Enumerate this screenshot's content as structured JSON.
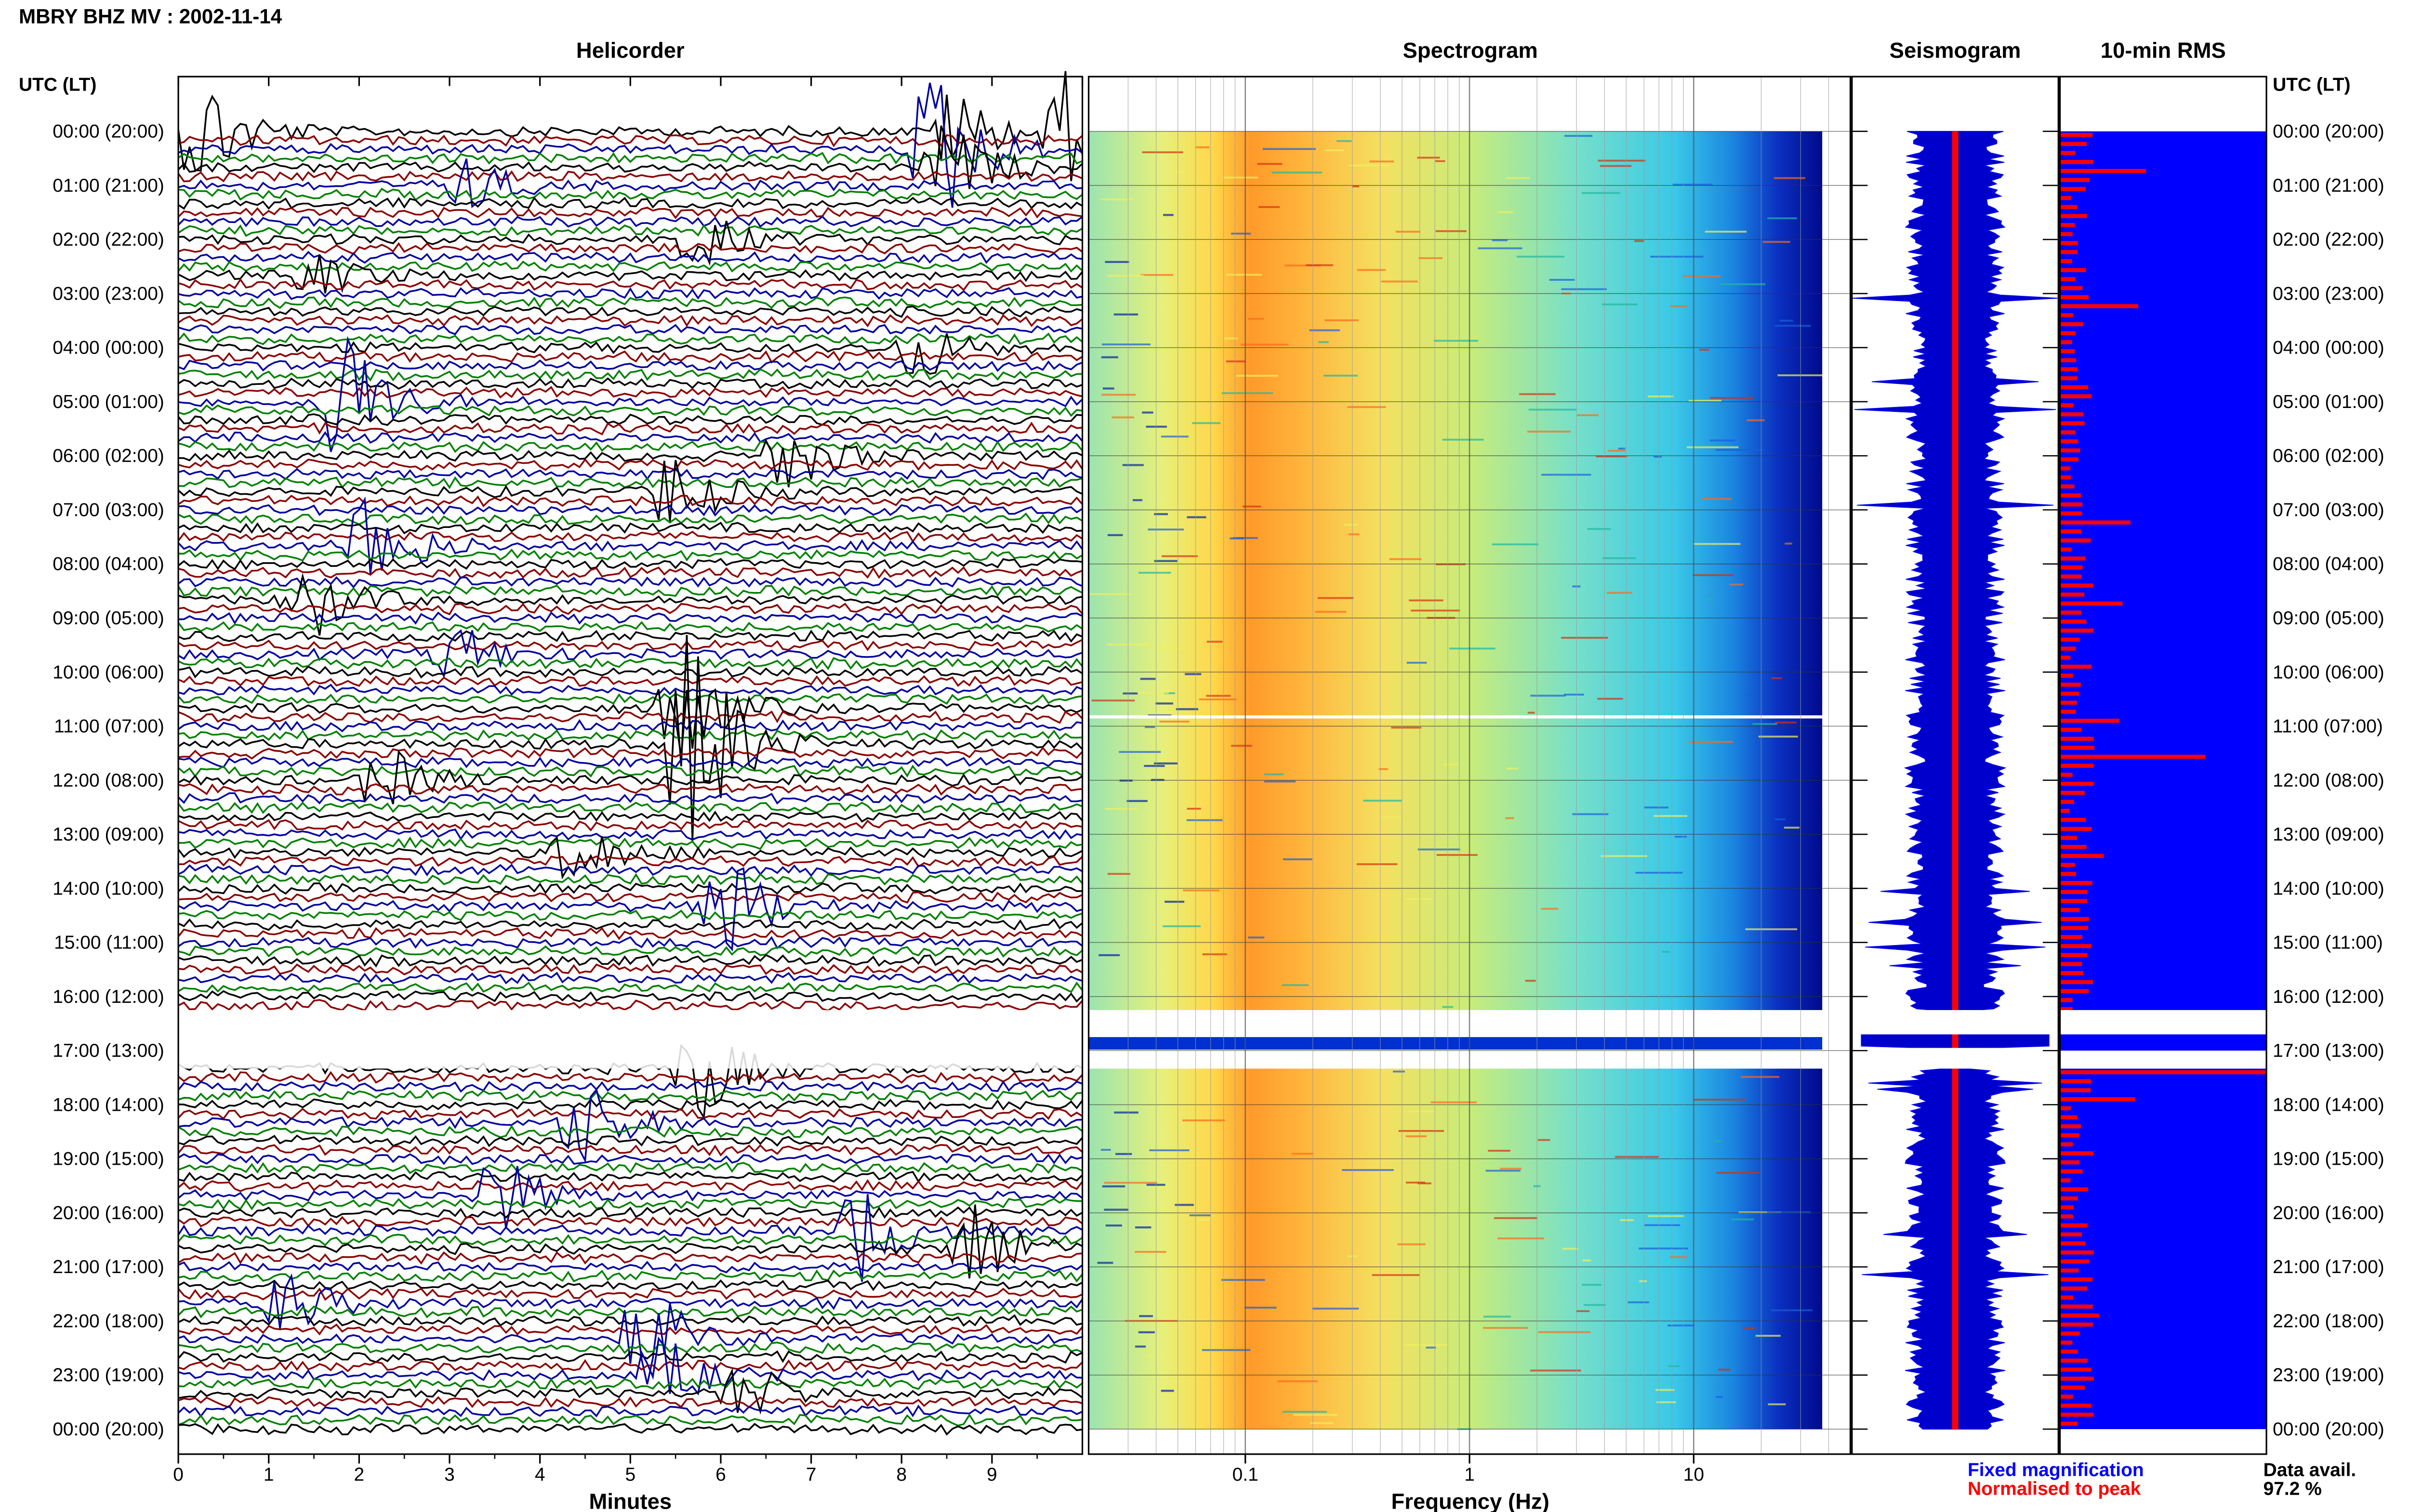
{
  "title": "MBRY BHZ MV : 2002-11-14",
  "panels": {
    "helicorder": "Helicorder",
    "spectrogram": "Spectrogram",
    "seismogram": "Seismogram",
    "rms": "10-min RMS"
  },
  "axis_header_left": "UTC (LT)",
  "axis_header_right": "UTC (LT)",
  "time_labels": [
    "00:00 (20:00)",
    "01:00 (21:00)",
    "02:00 (22:00)",
    "03:00 (23:00)",
    "04:00 (00:00)",
    "05:00 (01:00)",
    "06:00 (02:00)",
    "07:00 (03:00)",
    "08:00 (04:00)",
    "09:00 (05:00)",
    "10:00 (06:00)",
    "11:00 (07:00)",
    "12:00 (08:00)",
    "13:00 (09:00)",
    "14:00 (10:00)",
    "15:00 (11:00)",
    "16:00 (12:00)",
    "17:00 (13:00)",
    "18:00 (14:00)",
    "19:00 (15:00)",
    "20:00 (16:00)",
    "21:00 (17:00)",
    "22:00 (18:00)",
    "23:00 (19:00)",
    "00:00 (20:00)"
  ],
  "legend": {
    "fixed": "Fixed magnification",
    "normalised": "Normalised to peak",
    "fixed_color": "#0000ff",
    "normalised_color": "#ff0000"
  },
  "data_avail": {
    "label": "Data avail.",
    "value": "97.2 %"
  },
  "colors": {
    "heli_traces": [
      "#000000",
      "#8b0000",
      "#0000a0",
      "#008000"
    ],
    "seis_fill": "#0000cc",
    "rms_fill": "#0000ff",
    "rms_bar": "#ff0000"
  },
  "chart_data": [
    {
      "type": "line",
      "title": "Helicorder",
      "xlabel": "Minutes",
      "x_ticks": [
        "0",
        "1",
        "2",
        "3",
        "4",
        "5",
        "6",
        "7",
        "8",
        "9"
      ],
      "xlim": [
        0,
        10
      ],
      "rows_per_hour": 6,
      "gap": {
        "start": "16:15",
        "end": "17:20"
      }
    },
    {
      "type": "heatmap",
      "title": "Spectrogram",
      "xlabel": "Frequency (Hz)",
      "x_ticks": [
        "0.1",
        "1",
        "10"
      ],
      "xscale": "log",
      "xlim": [
        0.02,
        50
      ],
      "peak_band_hz": [
        0.15,
        0.5
      ],
      "gap": {
        "start": "16:15",
        "end": "17:20"
      }
    },
    {
      "type": "area",
      "title": "Seismogram"
    },
    {
      "type": "bar",
      "title": "10-min RMS",
      "data_availability_percent": 97.2
    }
  ]
}
